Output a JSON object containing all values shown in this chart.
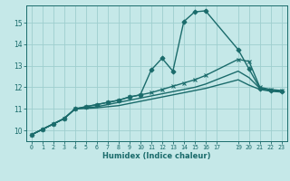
{
  "xlabel": "Humidex (Indice chaleur)",
  "bg_color": "#c5e8e8",
  "line_color": "#1a6b6b",
  "grid_color": "#9ecece",
  "xlim": [
    -0.5,
    23.5
  ],
  "ylim": [
    9.5,
    15.8
  ],
  "xtick_positions": [
    0,
    1,
    2,
    3,
    4,
    5,
    6,
    7,
    8,
    9,
    10,
    11,
    12,
    13,
    14,
    15,
    16,
    17,
    19,
    20,
    21,
    22,
    23
  ],
  "xtick_labels": [
    "0",
    "1",
    "2",
    "3",
    "4",
    "5",
    "6",
    "7",
    "8",
    "9",
    "10",
    "11",
    "12",
    "13",
    "14",
    "15",
    "16",
    "17",
    "19",
    "20",
    "21",
    "22",
    "23"
  ],
  "yticks": [
    10,
    11,
    12,
    13,
    14,
    15
  ],
  "series": [
    {
      "x": [
        0,
        1,
        2,
        3,
        4,
        5,
        6,
        7,
        8,
        9,
        10,
        11,
        12,
        13,
        14,
        15,
        16,
        19,
        20,
        21,
        22,
        23
      ],
      "y": [
        9.8,
        10.05,
        10.3,
        10.55,
        11.0,
        11.1,
        11.2,
        11.3,
        11.4,
        11.55,
        11.65,
        12.8,
        13.35,
        12.75,
        15.05,
        15.5,
        15.55,
        13.75,
        12.85,
        11.95,
        11.85,
        11.8
      ],
      "marker": "D",
      "markersize": 2.5,
      "linewidth": 1.0
    },
    {
      "x": [
        0,
        1,
        2,
        3,
        4,
        5,
        6,
        7,
        8,
        9,
        10,
        11,
        12,
        13,
        14,
        15,
        16,
        19,
        20,
        21,
        22,
        23
      ],
      "y": [
        9.8,
        10.05,
        10.3,
        10.55,
        11.0,
        11.1,
        11.2,
        11.3,
        11.4,
        11.55,
        11.65,
        11.75,
        11.9,
        12.05,
        12.2,
        12.35,
        12.55,
        13.3,
        13.2,
        12.0,
        11.9,
        11.85
      ],
      "marker": "x",
      "markersize": 3.0,
      "linewidth": 1.0
    },
    {
      "x": [
        0,
        1,
        2,
        3,
        4,
        5,
        6,
        7,
        8,
        9,
        10,
        11,
        12,
        13,
        14,
        15,
        16,
        19,
        20,
        21,
        22,
        23
      ],
      "y": [
        9.8,
        10.05,
        10.3,
        10.55,
        11.0,
        11.05,
        11.1,
        11.2,
        11.3,
        11.4,
        11.5,
        11.6,
        11.7,
        11.8,
        11.9,
        12.0,
        12.15,
        12.75,
        12.45,
        11.95,
        11.85,
        11.8
      ],
      "marker": null,
      "markersize": 0,
      "linewidth": 1.0
    },
    {
      "x": [
        0,
        1,
        2,
        3,
        4,
        5,
        6,
        7,
        8,
        9,
        10,
        11,
        12,
        13,
        14,
        15,
        16,
        19,
        20,
        21,
        22,
        23
      ],
      "y": [
        9.8,
        10.05,
        10.3,
        10.55,
        11.0,
        11.02,
        11.05,
        11.1,
        11.15,
        11.25,
        11.35,
        11.45,
        11.55,
        11.65,
        11.75,
        11.85,
        11.95,
        12.35,
        12.1,
        11.9,
        11.82,
        11.78
      ],
      "marker": null,
      "markersize": 0,
      "linewidth": 1.0
    }
  ]
}
